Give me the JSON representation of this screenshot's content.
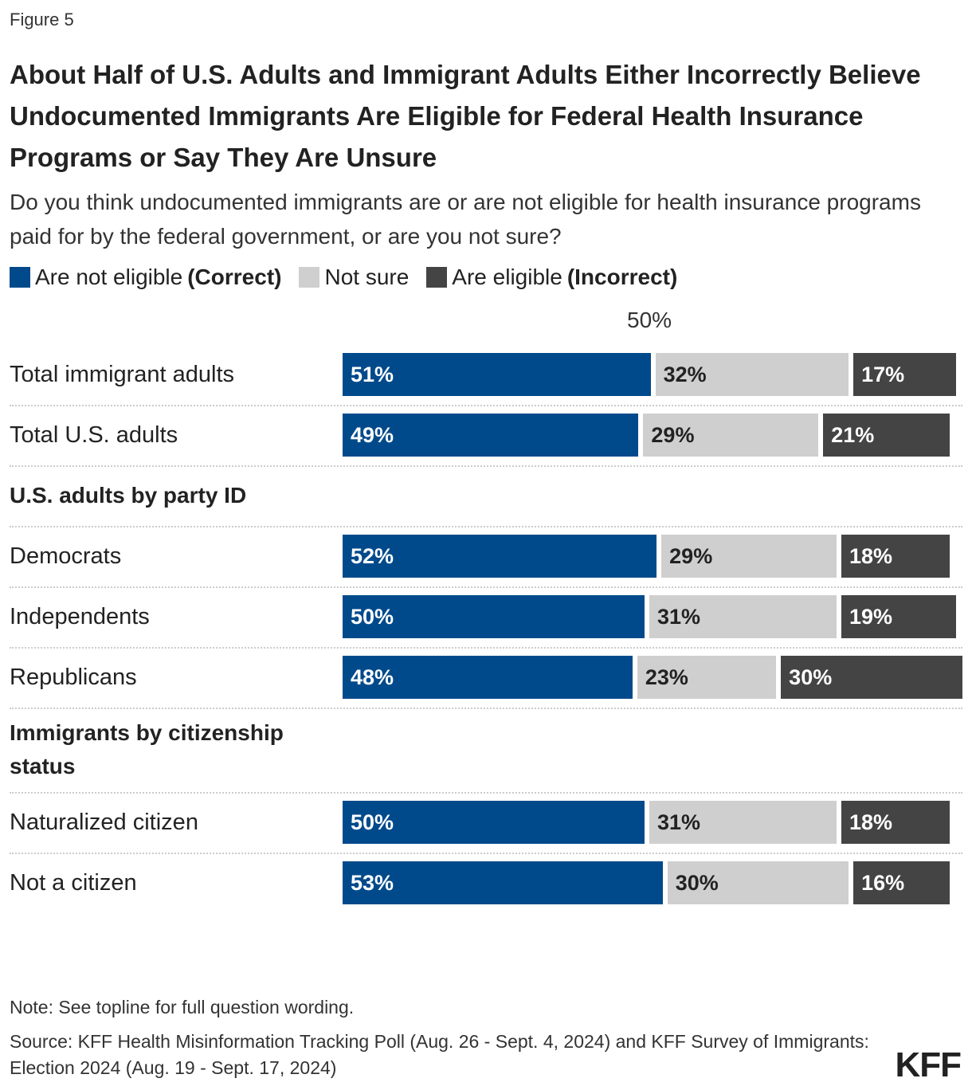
{
  "figure_label": "Figure 5",
  "chart_data": {
    "type": "stacked-bar-horizontal",
    "title": "About Half of U.S. Adults and Immigrant Adults Either Incorrectly Believe Undocumented Immigrants Are Eligible for Federal Health Insurance Programs or Say They Are Unsure",
    "subtitle": "Do you think undocumented immigrants are or are not eligible for health insurance programs paid for by the federal government, or are you not sure?",
    "categories": [
      "Total immigrant adults",
      "Total U.S. adults",
      "U.S. adults by party ID",
      "Democrats",
      "Independents",
      "Republicans",
      "Immigrants by citizenship status",
      "Naturalized citizen",
      "Not a citizen"
    ],
    "series": [
      {
        "name": "Are not eligible",
        "name_suffix": "(Correct)",
        "color": "#004a8b",
        "text_color": "#ffffff",
        "values": [
          51,
          49,
          null,
          52,
          50,
          48,
          null,
          50,
          53
        ],
        "value_labels": [
          "51%",
          "49%",
          null,
          "52%",
          "50%",
          "48%",
          null,
          "50%",
          "53%"
        ]
      },
      {
        "name": "Not sure",
        "color": "#cfcfcf",
        "text_color": "#222222",
        "values": [
          32,
          29,
          null,
          29,
          31,
          23,
          null,
          31,
          30
        ],
        "value_labels": [
          "32%",
          "29%",
          null,
          "29%",
          "31%",
          "23%",
          null,
          "31%",
          "30%"
        ]
      },
      {
        "name": "Are eligible",
        "name_suffix": "(Incorrect)",
        "color": "#444444",
        "text_color": "#ffffff",
        "values": [
          17,
          21,
          null,
          18,
          19,
          30,
          null,
          18,
          16
        ],
        "value_labels": [
          "17%",
          "21%",
          null,
          "18%",
          "19%",
          "30%",
          null,
          "18%",
          "16%"
        ]
      }
    ],
    "xlim": [
      0,
      100
    ],
    "reference": {
      "value": 50,
      "label": "50%"
    },
    "legend": "top-left"
  },
  "footer": {
    "note": "Note: See topline for full question wording.",
    "source": "Source: KFF Health Misinformation Tracking Poll (Aug. 26 - Sept. 4, 2024) and KFF Survey of Immigrants: Election 2024 (Aug. 19 - Sept. 17, 2024)",
    "logo": "KFF"
  }
}
